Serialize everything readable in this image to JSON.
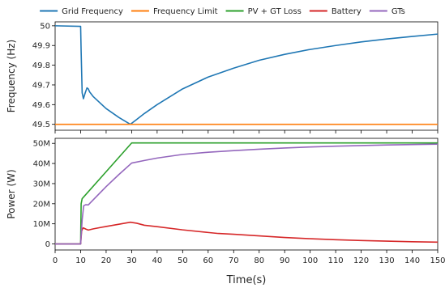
{
  "chart_data": [
    {
      "type": "line",
      "ylabel": "Frequency (Hz)",
      "ylim": [
        49.47,
        50.02
      ],
      "xlim": [
        0,
        150
      ],
      "yticks": [
        "49.5",
        "49.6",
        "49.7",
        "49.8",
        "49.9",
        "50"
      ],
      "ytick_values": [
        49.5,
        49.6,
        49.7,
        49.8,
        49.9,
        50.0
      ],
      "series": [
        {
          "name": "Grid Frequency",
          "color": "#1f77b4",
          "x": [
            0,
            10,
            10.2,
            10.6,
            11.1,
            11.8,
            12.5,
            13,
            13.5,
            15,
            20,
            25,
            29.5,
            30.5,
            32,
            35,
            40,
            45,
            50,
            60,
            70,
            80,
            90,
            100,
            110,
            120,
            130,
            140,
            150
          ],
          "y": [
            50.0,
            49.997,
            49.87,
            49.66,
            49.63,
            49.66,
            49.685,
            49.68,
            49.665,
            49.64,
            49.58,
            49.535,
            49.5,
            49.51,
            49.525,
            49.555,
            49.6,
            49.64,
            49.68,
            49.74,
            49.785,
            49.825,
            49.855,
            49.88,
            49.9,
            49.918,
            49.933,
            49.946,
            49.958
          ]
        },
        {
          "name": "Frequency Limit",
          "color": "#ff7f0e",
          "x": [
            0,
            150
          ],
          "y": [
            49.5,
            49.5
          ]
        }
      ]
    },
    {
      "type": "line",
      "ylabel": "Power (W)",
      "xlabel": "Time(s)",
      "ylim": [
        -3000000,
        52500000
      ],
      "xlim": [
        0,
        150
      ],
      "yticks": [
        "0",
        "10M",
        "20M",
        "30M",
        "40M",
        "50M"
      ],
      "ytick_values": [
        0,
        10000000,
        20000000,
        30000000,
        40000000,
        50000000
      ],
      "xticks": [
        "0",
        "10",
        "20",
        "30",
        "40",
        "50",
        "60",
        "70",
        "80",
        "90",
        "100",
        "110",
        "120",
        "130",
        "140",
        "150"
      ],
      "xtick_values": [
        0,
        10,
        20,
        30,
        40,
        50,
        60,
        70,
        80,
        90,
        100,
        110,
        120,
        130,
        140,
        150
      ],
      "series": [
        {
          "name": "PV + GT Loss",
          "color": "#2ca02c",
          "x": [
            0,
            10,
            10.2,
            10.6,
            30,
            150
          ],
          "y": [
            0,
            0,
            20000000,
            22500000,
            50200000,
            50200000
          ]
        },
        {
          "name": "Battery",
          "color": "#d62728",
          "x": [
            0,
            10,
            10.4,
            11,
            12,
            13,
            15,
            20,
            25,
            29.5,
            32,
            35,
            40,
            50,
            60,
            64,
            70,
            80,
            90,
            100,
            110,
            120,
            130,
            140,
            150
          ],
          "y": [
            0,
            0,
            6500000,
            8000000,
            7400000,
            6900000,
            7500000,
            8700000,
            9800000,
            10800000,
            10300000,
            9300000,
            8600000,
            7000000,
            5700000,
            5200000,
            4800000,
            4000000,
            3200000,
            2600000,
            2100000,
            1700000,
            1400000,
            1100000,
            900000
          ]
        },
        {
          "name": "GTs",
          "color": "#9467bd",
          "x": [
            0,
            10,
            10.6,
            11.2,
            12,
            13,
            15,
            20,
            25,
            30,
            35,
            40,
            50,
            60,
            70,
            80,
            90,
            100,
            110,
            120,
            130,
            140,
            150
          ],
          "y": [
            0,
            0,
            12000000,
            19000000,
            19500000,
            19400000,
            22000000,
            28500000,
            34500000,
            40200000,
            41500000,
            42700000,
            44500000,
            45600000,
            46400000,
            47100000,
            47700000,
            48200000,
            48600000,
            48900000,
            49200000,
            49400000,
            49600000
          ]
        }
      ]
    }
  ],
  "legend": {
    "placement": "top-center",
    "entries": [
      {
        "label": "Grid Frequency",
        "color": "#1f77b4"
      },
      {
        "label": "Frequency Limit",
        "color": "#ff7f0e"
      },
      {
        "label": "PV + GT Loss",
        "color": "#2ca02c"
      },
      {
        "label": "Battery",
        "color": "#d62728"
      },
      {
        "label": "GTs",
        "color": "#9467bd"
      }
    ]
  }
}
